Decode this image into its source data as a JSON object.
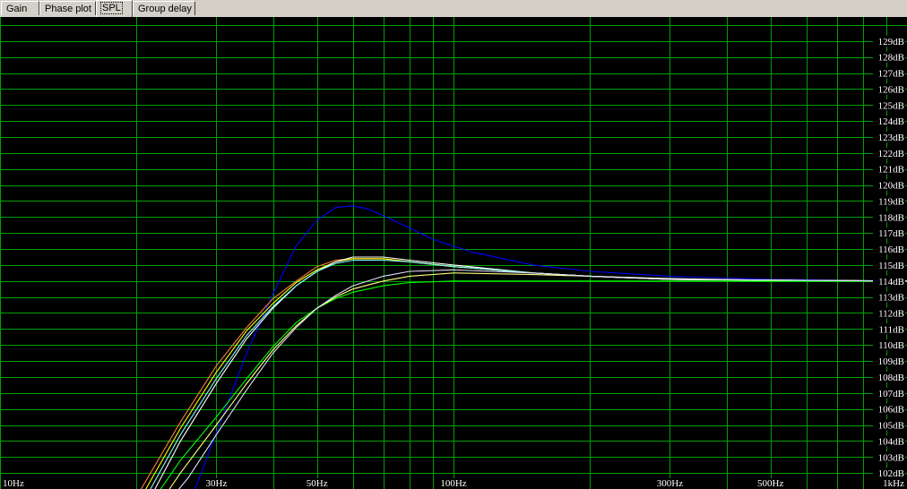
{
  "tabs": [
    {
      "label": "Gain",
      "active": false
    },
    {
      "label": "Phase plot",
      "active": false
    },
    {
      "label": "SPL",
      "active": true
    },
    {
      "label": "Group delay",
      "active": false
    }
  ],
  "colors": {
    "background": "#000000",
    "grid": "#00a000",
    "tabbar": "#d4d0c8"
  },
  "chart_data": {
    "type": "line",
    "xscale": "log",
    "xlim": [
      10,
      1000
    ],
    "ylim": [
      101,
      130.5
    ],
    "grid": true,
    "x_ticks": [
      {
        "value": 10,
        "label": "10Hz"
      },
      {
        "value": 30,
        "label": "30Hz"
      },
      {
        "value": 50,
        "label": "50Hz"
      },
      {
        "value": 100,
        "label": "100Hz"
      },
      {
        "value": 300,
        "label": "300Hz"
      },
      {
        "value": 500,
        "label": "500Hz"
      },
      {
        "value": 1000,
        "label": "1kHz"
      }
    ],
    "y_ticks": [
      {
        "value": 102,
        "label": "102dB"
      },
      {
        "value": 103,
        "label": "103dB"
      },
      {
        "value": 104,
        "label": "104dB"
      },
      {
        "value": 105,
        "label": "105dB"
      },
      {
        "value": 106,
        "label": "106dB"
      },
      {
        "value": 107,
        "label": "107dB"
      },
      {
        "value": 108,
        "label": "108dB"
      },
      {
        "value": 109,
        "label": "109dB"
      },
      {
        "value": 110,
        "label": "110dB"
      },
      {
        "value": 111,
        "label": "111dB"
      },
      {
        "value": 112,
        "label": "112dB"
      },
      {
        "value": 113,
        "label": "113dB"
      },
      {
        "value": 114,
        "label": "114dB"
      },
      {
        "value": 115,
        "label": "115dB"
      },
      {
        "value": 116,
        "label": "116dB"
      },
      {
        "value": 117,
        "label": "117dB"
      },
      {
        "value": 118,
        "label": "118dB"
      },
      {
        "value": 119,
        "label": "119dB"
      },
      {
        "value": 120,
        "label": "120dB"
      },
      {
        "value": 121,
        "label": "121dB"
      },
      {
        "value": 122,
        "label": "122dB"
      },
      {
        "value": 123,
        "label": "123dB"
      },
      {
        "value": 124,
        "label": "124dB"
      },
      {
        "value": 125,
        "label": "125dB"
      },
      {
        "value": 126,
        "label": "126dB"
      },
      {
        "value": 127,
        "label": "127dB"
      },
      {
        "value": 128,
        "label": "128dB"
      },
      {
        "value": 129,
        "label": "129dB"
      }
    ],
    "series": [
      {
        "color": "#0000ff",
        "points": [
          [
            26.5,
            100.5
          ],
          [
            30,
            104.5
          ],
          [
            35,
            109.5
          ],
          [
            40,
            113.2
          ],
          [
            45,
            116.2
          ],
          [
            50,
            117.8
          ],
          [
            55,
            118.6
          ],
          [
            60,
            118.7
          ],
          [
            65,
            118.5
          ],
          [
            75,
            117.7
          ],
          [
            90,
            116.6
          ],
          [
            110,
            115.8
          ],
          [
            150,
            115
          ],
          [
            200,
            114.6
          ],
          [
            300,
            114.3
          ],
          [
            500,
            114.1
          ],
          [
            1000,
            114
          ]
        ]
      },
      {
        "color": "#ff8040",
        "points": [
          [
            20,
            100.5
          ],
          [
            25,
            105.2
          ],
          [
            30,
            108.7
          ],
          [
            35,
            111.1
          ],
          [
            40,
            112.9
          ],
          [
            45,
            114
          ],
          [
            50,
            114.9
          ],
          [
            55,
            115.3
          ],
          [
            60,
            115.4
          ],
          [
            70,
            115.4
          ],
          [
            80,
            115.2
          ],
          [
            100,
            114.9
          ],
          [
            150,
            114.5
          ],
          [
            200,
            114.3
          ],
          [
            300,
            114.1
          ],
          [
            500,
            114.05
          ],
          [
            1000,
            114
          ]
        ]
      },
      {
        "color": "#ffff00",
        "points": [
          [
            20.5,
            100.5
          ],
          [
            25,
            104.8
          ],
          [
            30,
            108.3
          ],
          [
            35,
            110.9
          ],
          [
            40,
            112.6
          ],
          [
            45,
            113.9
          ],
          [
            50,
            114.7
          ],
          [
            55,
            115.2
          ],
          [
            60,
            115.4
          ],
          [
            70,
            115.4
          ],
          [
            80,
            115.2
          ],
          [
            100,
            114.9
          ],
          [
            150,
            114.5
          ],
          [
            200,
            114.3
          ],
          [
            300,
            114.1
          ],
          [
            500,
            114.05
          ],
          [
            1000,
            114
          ]
        ]
      },
      {
        "color": "#ffffff",
        "points": [
          [
            21.5,
            100.5
          ],
          [
            25,
            104
          ],
          [
            30,
            107.6
          ],
          [
            35,
            110.4
          ],
          [
            40,
            112.3
          ],
          [
            45,
            113.7
          ],
          [
            50,
            114.6
          ],
          [
            55,
            115.2
          ],
          [
            60,
            115.5
          ],
          [
            70,
            115.5
          ],
          [
            80,
            115.3
          ],
          [
            100,
            115
          ],
          [
            150,
            114.5
          ],
          [
            200,
            114.3
          ],
          [
            300,
            114.15
          ],
          [
            500,
            114.05
          ],
          [
            1000,
            114
          ]
        ]
      },
      {
        "color": "#80ffff",
        "points": [
          [
            21,
            100.5
          ],
          [
            25,
            104.4
          ],
          [
            30,
            107.9
          ],
          [
            35,
            110.6
          ],
          [
            40,
            112.4
          ],
          [
            45,
            113.7
          ],
          [
            50,
            114.6
          ],
          [
            55,
            115.1
          ],
          [
            60,
            115.3
          ],
          [
            70,
            115.3
          ],
          [
            80,
            115.2
          ],
          [
            100,
            114.9
          ],
          [
            150,
            114.5
          ],
          [
            200,
            114.3
          ],
          [
            300,
            114.1
          ],
          [
            500,
            114.05
          ],
          [
            1000,
            114
          ]
        ]
      },
      {
        "color": "#00ff00",
        "points": [
          [
            22,
            100.5
          ],
          [
            25,
            102.8
          ],
          [
            30,
            105.5
          ],
          [
            35,
            107.9
          ],
          [
            40,
            109.9
          ],
          [
            45,
            111.4
          ],
          [
            50,
            112.3
          ],
          [
            55,
            112.9
          ],
          [
            60,
            113.3
          ],
          [
            70,
            113.7
          ],
          [
            80,
            113.9
          ],
          [
            100,
            114
          ],
          [
            150,
            114
          ],
          [
            300,
            114
          ],
          [
            1000,
            114
          ]
        ]
      },
      {
        "color": "#ffff80",
        "points": [
          [
            23,
            100.5
          ],
          [
            25,
            102
          ],
          [
            30,
            105
          ],
          [
            35,
            107.6
          ],
          [
            40,
            109.7
          ],
          [
            45,
            111.2
          ],
          [
            50,
            112.3
          ],
          [
            55,
            113
          ],
          [
            60,
            113.5
          ],
          [
            70,
            114
          ],
          [
            80,
            114.3
          ],
          [
            100,
            114.5
          ],
          [
            150,
            114.4
          ],
          [
            200,
            114.3
          ],
          [
            300,
            114.1
          ],
          [
            1000,
            114
          ]
        ]
      },
      {
        "color": "#e0e0ff",
        "points": [
          [
            24,
            100.5
          ],
          [
            26,
            101.7
          ],
          [
            30,
            104.4
          ],
          [
            35,
            107.2
          ],
          [
            40,
            109.5
          ],
          [
            45,
            111.1
          ],
          [
            50,
            112.3
          ],
          [
            55,
            113.1
          ],
          [
            60,
            113.7
          ],
          [
            70,
            114.3
          ],
          [
            80,
            114.6
          ],
          [
            100,
            114.7
          ],
          [
            150,
            114.5
          ],
          [
            200,
            114.3
          ],
          [
            300,
            114.1
          ],
          [
            1000,
            114
          ]
        ]
      }
    ]
  }
}
